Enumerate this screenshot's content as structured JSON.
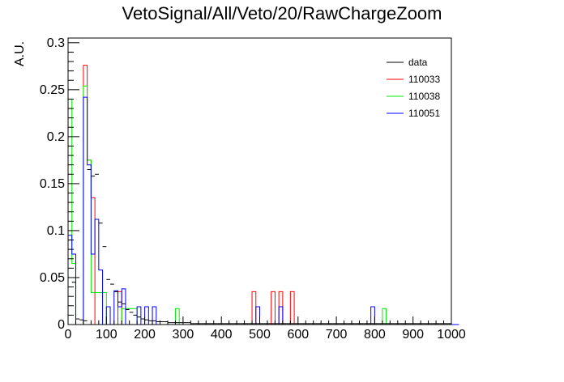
{
  "chart_data": {
    "type": "histogram",
    "title": "VetoSignal/All/Veto/20/RawChargeZoom",
    "xlabel": "",
    "ylabel": "A.U.",
    "xlim": [
      0,
      1000
    ],
    "ylim": [
      0,
      0.305
    ],
    "bin_width": 10,
    "x_ticks": [
      0,
      100,
      200,
      300,
      400,
      500,
      600,
      700,
      800,
      900,
      1000
    ],
    "x_tick_labels": [
      "0",
      "100",
      "200",
      "300",
      "400",
      "500",
      "600",
      "700",
      "800",
      "900",
      "1000"
    ],
    "y_ticks": [
      0,
      0.05,
      0.1,
      0.15,
      0.2,
      0.25,
      0.3
    ],
    "y_tick_labels": [
      "0",
      "0.05",
      "0.1",
      "0.15",
      "0.2",
      "0.25",
      "0.3"
    ],
    "grid": false,
    "legend_position": "top-right",
    "series": [
      {
        "name": "data",
        "color": "#000000",
        "style": "error-markers",
        "values": [
          0.09,
          0.045,
          0.006,
          0.005,
          0.004,
          0.165,
          0.158,
          0.16,
          0.108,
          0.083,
          0.048,
          0.043,
          0.035,
          0.024,
          0.022,
          0.016,
          0.013,
          0.01,
          0.008,
          0.006,
          0.005,
          0.004,
          0.004,
          0.003,
          0.003,
          0.003,
          0.002,
          0.002,
          0.002,
          0.002,
          0.002,
          0.002,
          0.001,
          0.001,
          0.001,
          0.001,
          0.001,
          0.001,
          0.001,
          0.001,
          0.001,
          0.001,
          0.001,
          0.001,
          0.001,
          0.001,
          0.001,
          0.001,
          0.001,
          0.001,
          0.001,
          0.001,
          0.001,
          0.001,
          0.001,
          0.001,
          0.001,
          0.001,
          0.001,
          0.001,
          0.001,
          0.001,
          0.001,
          0.001,
          0.001,
          0.001,
          0.001,
          0.001,
          0.001,
          0.001,
          0.001,
          0.001,
          0.001,
          0.001,
          0.001,
          0.001,
          0.001,
          0.001,
          0.001,
          0.001,
          0.001,
          0.001,
          0.001,
          0.001,
          0.001,
          0.001,
          0.001,
          0.001,
          0.001,
          0.001,
          0.001,
          0.001,
          0.001,
          0.001,
          0.001,
          0.001,
          0.001,
          0.001,
          0.001,
          0.001
        ]
      },
      {
        "name": "110033",
        "color": "#ff0000",
        "style": "step",
        "values": [
          0,
          0,
          0,
          0,
          0.276,
          0.175,
          0.135,
          0,
          0,
          0,
          0,
          0,
          0,
          0.035,
          0,
          0,
          0,
          0,
          0,
          0,
          0,
          0,
          0,
          0,
          0,
          0,
          0,
          0,
          0,
          0,
          0,
          0,
          0,
          0,
          0,
          0,
          0,
          0,
          0,
          0,
          0,
          0,
          0,
          0,
          0,
          0,
          0,
          0,
          0.035,
          0,
          0,
          0,
          0,
          0.035,
          0,
          0.035,
          0,
          0,
          0.035,
          0,
          0,
          0,
          0,
          0,
          0,
          0,
          0,
          0,
          0,
          0,
          0,
          0,
          0,
          0,
          0,
          0,
          0,
          0,
          0,
          0,
          0,
          0,
          0,
          0,
          0,
          0,
          0,
          0,
          0,
          0,
          0,
          0,
          0,
          0,
          0,
          0,
          0,
          0,
          0,
          0,
          0
        ]
      },
      {
        "name": "110038",
        "color": "#00ee00",
        "style": "step",
        "values": [
          0.24,
          0.065,
          0,
          0,
          0.254,
          0.175,
          0.034,
          0.034,
          0.034,
          0.034,
          0,
          0,
          0,
          0,
          0.017,
          0.017,
          0.017,
          0.017,
          0,
          0,
          0,
          0,
          0,
          0,
          0,
          0,
          0,
          0,
          0.017,
          0,
          0,
          0,
          0,
          0,
          0,
          0,
          0,
          0,
          0,
          0,
          0,
          0,
          0,
          0,
          0,
          0,
          0,
          0,
          0,
          0,
          0,
          0,
          0,
          0,
          0,
          0,
          0,
          0,
          0,
          0,
          0,
          0,
          0,
          0,
          0,
          0,
          0,
          0,
          0,
          0,
          0,
          0,
          0,
          0,
          0,
          0,
          0,
          0,
          0,
          0,
          0,
          0,
          0.017,
          0,
          0,
          0,
          0,
          0,
          0,
          0,
          0,
          0,
          0,
          0,
          0,
          0,
          0,
          0,
          0,
          0,
          0
        ]
      },
      {
        "name": "110051",
        "color": "#0000ff",
        "style": "step",
        "values": [
          0.095,
          0.075,
          0,
          0,
          0.242,
          0.17,
          0.075,
          0.112,
          0.058,
          0,
          0.019,
          0,
          0.036,
          0.019,
          0.038,
          0,
          0,
          0,
          0.019,
          0,
          0.019,
          0,
          0.019,
          0,
          0,
          0,
          0,
          0,
          0,
          0,
          0,
          0,
          0,
          0,
          0,
          0,
          0,
          0,
          0,
          0,
          0,
          0,
          0,
          0,
          0,
          0,
          0,
          0,
          0,
          0.019,
          0,
          0,
          0,
          0,
          0,
          0.019,
          0,
          0,
          0,
          0,
          0,
          0,
          0,
          0,
          0,
          0,
          0,
          0,
          0,
          0,
          0,
          0,
          0,
          0,
          0,
          0,
          0,
          0,
          0,
          0.019,
          0,
          0,
          0,
          0,
          0,
          0,
          0,
          0,
          0,
          0,
          0,
          0,
          0,
          0,
          0,
          0,
          0,
          0,
          0,
          0,
          0,
          0
        ]
      }
    ]
  }
}
